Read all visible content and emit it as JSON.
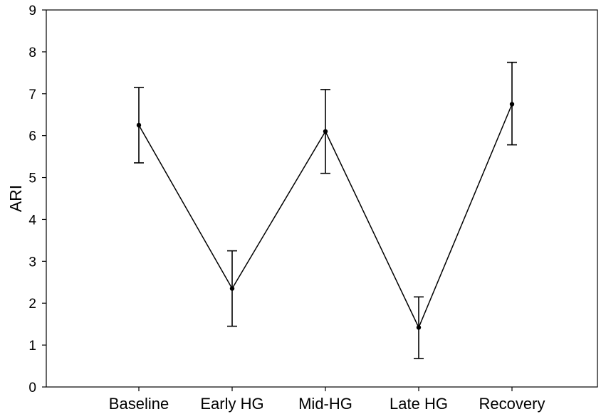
{
  "chart_data": {
    "type": "line",
    "title": "",
    "xlabel": "",
    "ylabel": "ARI",
    "categories": [
      "Baseline",
      "Early HG",
      "Mid-HG",
      "Late HG",
      "Recovery"
    ],
    "series": [
      {
        "values": [
          6.25,
          2.35,
          6.1,
          1.42,
          6.75
        ],
        "error_low": [
          5.35,
          1.45,
          5.1,
          0.68,
          5.78
        ],
        "error_high": [
          7.15,
          3.25,
          7.1,
          2.15,
          7.75
        ]
      }
    ],
    "ylim": [
      0,
      9
    ],
    "yticks": [
      "0",
      "1",
      "2",
      "3",
      "4",
      "5",
      "6",
      "7",
      "8",
      "9"
    ],
    "grid": false,
    "legend": "none",
    "colors": {
      "line": "#000000",
      "axis": "#000000",
      "background": "#ffffff"
    }
  }
}
